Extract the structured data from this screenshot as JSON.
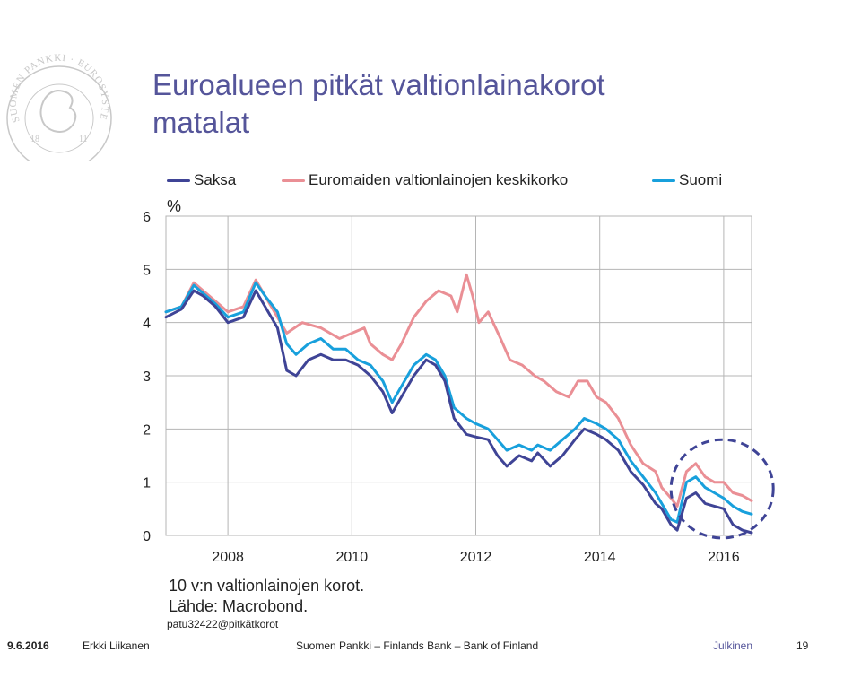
{
  "slide": {
    "title_line1": "Euroalueen pitkät valtionlainakorot",
    "title_line2": "matalat",
    "note_line1": "10 v:n valtionlainojen korot.",
    "note_line2": "Lähde: Macrobond.",
    "code": "patu32422@pitkätkorot"
  },
  "footer": {
    "date": "9.6.2016",
    "author": "Erkki Liikanen",
    "org": "Suomen Pankki – Finlands Bank – Bank of Finland",
    "classification": "Julkinen",
    "page": "19"
  },
  "logo": {
    "text": "SUOMEN PANKKI · EUROSYSTEEMI · FINLANDS BANK",
    "year_left": "18",
    "year_right": "11",
    "color": "#c8c8c8"
  },
  "colors": {
    "title": "#55559a",
    "saksa": "#3f4496",
    "euro": "#ea8f95",
    "suomi": "#18a0dc",
    "ellipse": "#3f4496",
    "grid": "#b5b5b5"
  },
  "chart_data": {
    "type": "line",
    "unit_label": "%",
    "x_ticks": [
      "2008",
      "2010",
      "2012",
      "2014",
      "2016"
    ],
    "y_ticks": [
      "0",
      "1",
      "2",
      "3",
      "4",
      "5",
      "6"
    ],
    "ylim": [
      0,
      6
    ],
    "xlim": [
      2007.0,
      2016.45
    ],
    "grid": "vertical and horizontal",
    "legend": "top",
    "series": [
      {
        "name": "Saksa",
        "color": "#3f4496",
        "points": [
          [
            2007.0,
            4.1
          ],
          [
            2007.25,
            4.25
          ],
          [
            2007.45,
            4.6
          ],
          [
            2007.6,
            4.5
          ],
          [
            2007.8,
            4.3
          ],
          [
            2008.0,
            4.0
          ],
          [
            2008.25,
            4.1
          ],
          [
            2008.45,
            4.6
          ],
          [
            2008.6,
            4.3
          ],
          [
            2008.8,
            3.9
          ],
          [
            2008.95,
            3.1
          ],
          [
            2009.1,
            3.0
          ],
          [
            2009.3,
            3.3
          ],
          [
            2009.5,
            3.4
          ],
          [
            2009.7,
            3.3
          ],
          [
            2009.9,
            3.3
          ],
          [
            2010.1,
            3.2
          ],
          [
            2010.3,
            3.0
          ],
          [
            2010.5,
            2.7
          ],
          [
            2010.65,
            2.3
          ],
          [
            2010.85,
            2.7
          ],
          [
            2011.0,
            3.0
          ],
          [
            2011.2,
            3.3
          ],
          [
            2011.35,
            3.2
          ],
          [
            2011.5,
            2.9
          ],
          [
            2011.65,
            2.2
          ],
          [
            2011.85,
            1.9
          ],
          [
            2012.0,
            1.85
          ],
          [
            2012.2,
            1.8
          ],
          [
            2012.35,
            1.5
          ],
          [
            2012.5,
            1.3
          ],
          [
            2012.7,
            1.5
          ],
          [
            2012.9,
            1.4
          ],
          [
            2013.0,
            1.55
          ],
          [
            2013.2,
            1.3
          ],
          [
            2013.4,
            1.5
          ],
          [
            2013.6,
            1.8
          ],
          [
            2013.75,
            2.0
          ],
          [
            2013.95,
            1.9
          ],
          [
            2014.1,
            1.8
          ],
          [
            2014.3,
            1.6
          ],
          [
            2014.5,
            1.2
          ],
          [
            2014.7,
            0.95
          ],
          [
            2014.9,
            0.6
          ],
          [
            2015.0,
            0.5
          ],
          [
            2015.15,
            0.2
          ],
          [
            2015.25,
            0.1
          ],
          [
            2015.4,
            0.7
          ],
          [
            2015.55,
            0.8
          ],
          [
            2015.7,
            0.6
          ],
          [
            2015.85,
            0.55
          ],
          [
            2016.0,
            0.5
          ],
          [
            2016.15,
            0.2
          ],
          [
            2016.3,
            0.1
          ],
          [
            2016.45,
            0.05
          ]
        ]
      },
      {
        "name": "Euromaiden valtionlainojen keskikorko",
        "color": "#ea8f95",
        "points": [
          [
            2007.0,
            4.2
          ],
          [
            2007.25,
            4.3
          ],
          [
            2007.45,
            4.75
          ],
          [
            2007.6,
            4.6
          ],
          [
            2007.8,
            4.4
          ],
          [
            2008.0,
            4.2
          ],
          [
            2008.25,
            4.3
          ],
          [
            2008.45,
            4.8
          ],
          [
            2008.6,
            4.5
          ],
          [
            2008.8,
            4.1
          ],
          [
            2008.95,
            3.8
          ],
          [
            2009.2,
            4.0
          ],
          [
            2009.5,
            3.9
          ],
          [
            2009.8,
            3.7
          ],
          [
            2010.0,
            3.8
          ],
          [
            2010.2,
            3.9
          ],
          [
            2010.3,
            3.6
          ],
          [
            2010.5,
            3.4
          ],
          [
            2010.65,
            3.3
          ],
          [
            2010.8,
            3.6
          ],
          [
            2011.0,
            4.1
          ],
          [
            2011.2,
            4.4
          ],
          [
            2011.4,
            4.6
          ],
          [
            2011.6,
            4.5
          ],
          [
            2011.7,
            4.2
          ],
          [
            2011.85,
            4.9
          ],
          [
            2011.95,
            4.5
          ],
          [
            2012.05,
            4.0
          ],
          [
            2012.2,
            4.2
          ],
          [
            2012.4,
            3.7
          ],
          [
            2012.55,
            3.3
          ],
          [
            2012.75,
            3.2
          ],
          [
            2012.95,
            3.0
          ],
          [
            2013.1,
            2.9
          ],
          [
            2013.3,
            2.7
          ],
          [
            2013.5,
            2.6
          ],
          [
            2013.65,
            2.9
          ],
          [
            2013.8,
            2.9
          ],
          [
            2013.95,
            2.6
          ],
          [
            2014.1,
            2.5
          ],
          [
            2014.3,
            2.2
          ],
          [
            2014.5,
            1.7
          ],
          [
            2014.7,
            1.35
          ],
          [
            2014.9,
            1.2
          ],
          [
            2015.0,
            0.9
          ],
          [
            2015.15,
            0.7
          ],
          [
            2015.25,
            0.55
          ],
          [
            2015.4,
            1.2
          ],
          [
            2015.55,
            1.35
          ],
          [
            2015.7,
            1.1
          ],
          [
            2015.85,
            1.0
          ],
          [
            2016.0,
            1.0
          ],
          [
            2016.15,
            0.8
          ],
          [
            2016.3,
            0.75
          ],
          [
            2016.45,
            0.65
          ]
        ]
      },
      {
        "name": "Suomi",
        "color": "#18a0dc",
        "points": [
          [
            2007.0,
            4.2
          ],
          [
            2007.25,
            4.3
          ],
          [
            2007.45,
            4.7
          ],
          [
            2007.6,
            4.55
          ],
          [
            2007.8,
            4.35
          ],
          [
            2008.0,
            4.1
          ],
          [
            2008.25,
            4.2
          ],
          [
            2008.45,
            4.75
          ],
          [
            2008.6,
            4.5
          ],
          [
            2008.8,
            4.2
          ],
          [
            2008.95,
            3.6
          ],
          [
            2009.1,
            3.4
          ],
          [
            2009.3,
            3.6
          ],
          [
            2009.5,
            3.7
          ],
          [
            2009.7,
            3.5
          ],
          [
            2009.9,
            3.5
          ],
          [
            2010.1,
            3.3
          ],
          [
            2010.3,
            3.2
          ],
          [
            2010.5,
            2.9
          ],
          [
            2010.65,
            2.5
          ],
          [
            2010.85,
            2.9
          ],
          [
            2011.0,
            3.2
          ],
          [
            2011.2,
            3.4
          ],
          [
            2011.35,
            3.3
          ],
          [
            2011.5,
            3.0
          ],
          [
            2011.65,
            2.4
          ],
          [
            2011.85,
            2.2
          ],
          [
            2012.0,
            2.1
          ],
          [
            2012.2,
            2.0
          ],
          [
            2012.35,
            1.8
          ],
          [
            2012.5,
            1.6
          ],
          [
            2012.7,
            1.7
          ],
          [
            2012.9,
            1.6
          ],
          [
            2013.0,
            1.7
          ],
          [
            2013.2,
            1.6
          ],
          [
            2013.4,
            1.8
          ],
          [
            2013.6,
            2.0
          ],
          [
            2013.75,
            2.2
          ],
          [
            2013.95,
            2.1
          ],
          [
            2014.1,
            2.0
          ],
          [
            2014.3,
            1.8
          ],
          [
            2014.5,
            1.4
          ],
          [
            2014.7,
            1.1
          ],
          [
            2014.9,
            0.8
          ],
          [
            2015.0,
            0.6
          ],
          [
            2015.15,
            0.3
          ],
          [
            2015.25,
            0.25
          ],
          [
            2015.4,
            1.0
          ],
          [
            2015.55,
            1.1
          ],
          [
            2015.7,
            0.9
          ],
          [
            2015.85,
            0.8
          ],
          [
            2016.0,
            0.7
          ],
          [
            2016.15,
            0.55
          ],
          [
            2016.3,
            0.45
          ],
          [
            2016.45,
            0.4
          ]
        ]
      }
    ],
    "annotation": {
      "type": "dashed-ellipse",
      "x_range": [
        2015.15,
        2016.8
      ],
      "y_range": [
        -0.05,
        1.8
      ]
    }
  }
}
